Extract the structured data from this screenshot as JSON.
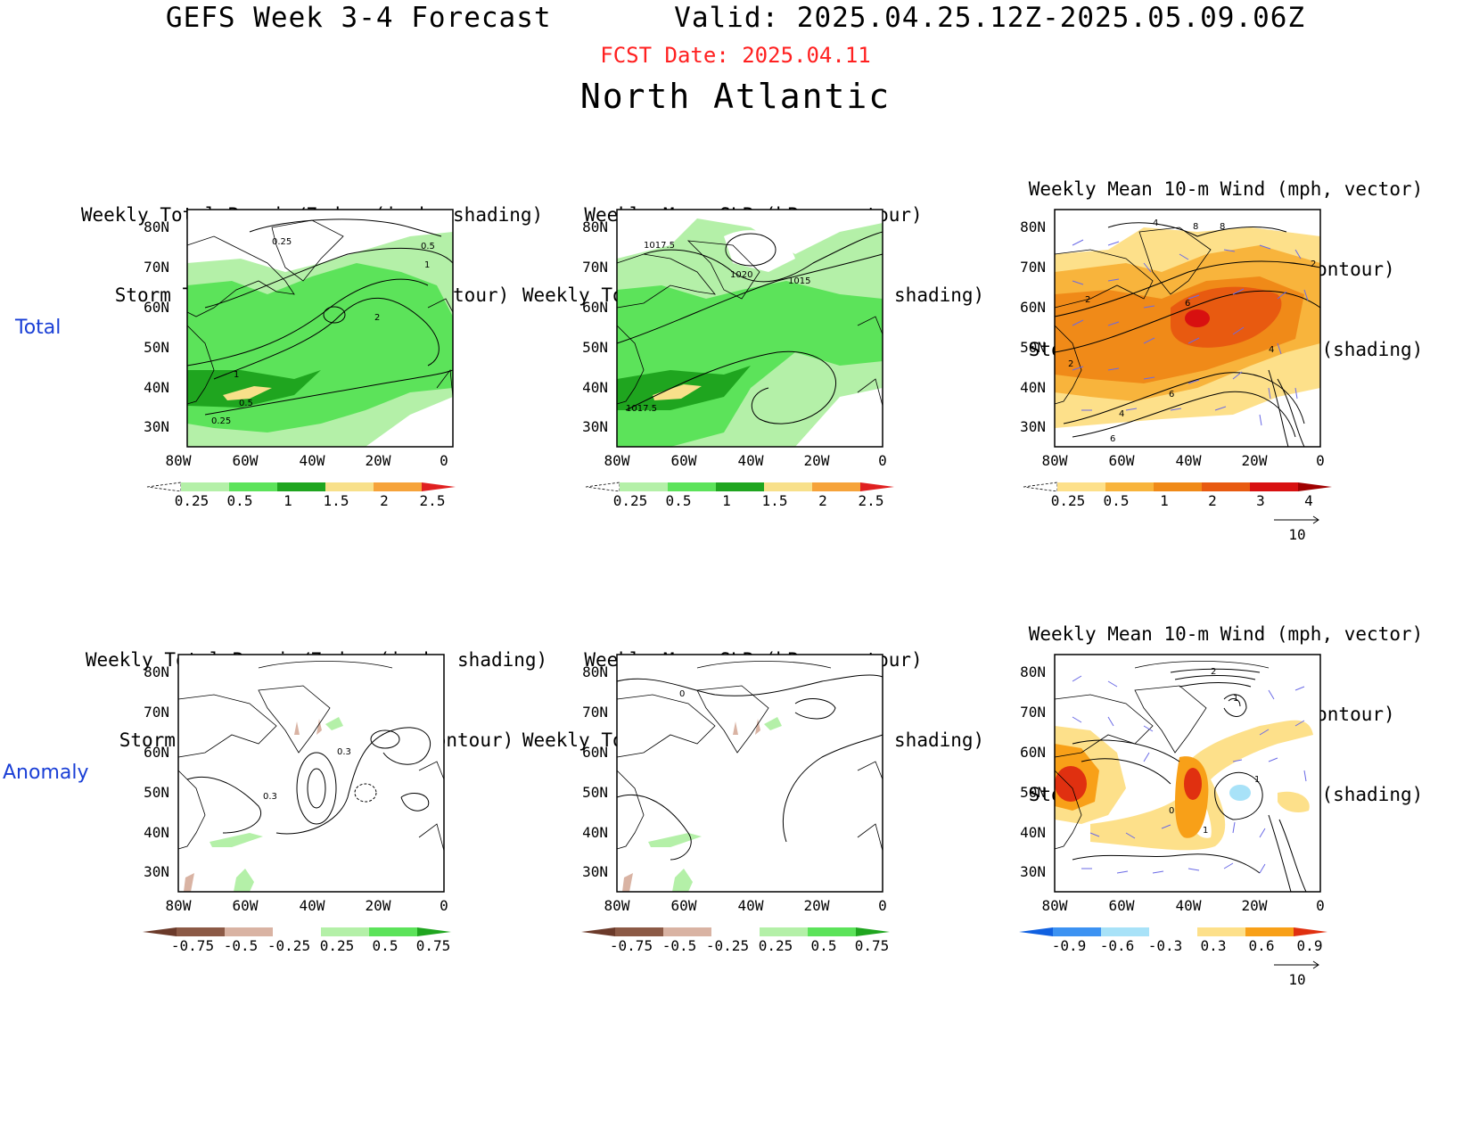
{
  "header": {
    "title": "GEFS Week 3-4 Forecast       Valid: 2025.04.25.12Z-2025.05.09.06Z",
    "fcst_date": "FCST Date: 2025.04.11",
    "region": "North Atlantic"
  },
  "rows": {
    "total_label": "Total",
    "anomaly_label": "Anomaly"
  },
  "axes": {
    "lat_labels": [
      "80N",
      "70N",
      "60N",
      "50N",
      "40N",
      "30N"
    ],
    "lon_labels": [
      "80W",
      "60W",
      "40W",
      "20W",
      "0"
    ]
  },
  "panels": [
    {
      "id": "total-precip",
      "title_lines": [
        "Weekly Total Precip/7-day (inch, shading)",
        "Storm Track Density/7-day (contour)"
      ],
      "colorbar": [
        "0.25",
        "0.5",
        "1",
        "1.5",
        "2",
        "2.5"
      ],
      "contour_labels": [
        "0.25",
        "0.5",
        "1",
        "2",
        "1",
        "0.5",
        "0.25"
      ]
    },
    {
      "id": "total-slp",
      "title_lines": [
        "Weekly Mean SLP (hPa, contour)",
        "Weekly Total Precip/7-day (inch, shading)"
      ],
      "colorbar": [
        "0.25",
        "0.5",
        "1",
        "1.5",
        "2",
        "2.5"
      ],
      "contour_labels": [
        "1017.5",
        "1020",
        "1015",
        "1017.5"
      ]
    },
    {
      "id": "total-wind",
      "title_lines": [
        "Weekly Mean 10-m Wind (mph, vector)",
        "10-m Wind Speed (mph, contour)",
        "Storm Track Density/7-day (shading)"
      ],
      "colorbar": [
        "0.25",
        "0.5",
        "1",
        "2",
        "3",
        "4"
      ],
      "contour_labels": [
        "4",
        "8",
        "8",
        "2",
        "6",
        "2",
        "4",
        "2",
        "6",
        "4",
        "6"
      ],
      "vector_ref": "10"
    },
    {
      "id": "anom-precip",
      "title_lines": [
        "Weekly Total Precip/7-day (inch, shading)",
        "Storm Track Density/7-day (contour)"
      ],
      "colorbar": [
        "-0.75",
        "-0.5",
        "-0.25",
        "0.25",
        "0.5",
        "0.75"
      ],
      "contour_labels": [
        "0.3",
        "0.3"
      ]
    },
    {
      "id": "anom-slp",
      "title_lines": [
        "Weekly Mean SLP (hPa, contour)",
        "Weekly Total Precip/7-day (inch, shading)"
      ],
      "colorbar": [
        "-0.75",
        "-0.5",
        "-0.25",
        "0.25",
        "0.5",
        "0.75"
      ],
      "contour_labels": [
        "0"
      ]
    },
    {
      "id": "anom-wind",
      "title_lines": [
        "Weekly Mean 10-m Wind (mph, vector)",
        "10-m Wind Speed (mph, contour)",
        "Storm Track Density/7-day (shading)"
      ],
      "colorbar": [
        "-0.9",
        "-0.6",
        "-0.3",
        "0.3",
        "0.6",
        "0.9"
      ],
      "contour_labels": [
        "2",
        "1",
        "1",
        "0",
        "1"
      ],
      "vector_ref": "10"
    }
  ],
  "colors": {
    "precip_scale": [
      "#ffffff",
      "#b4f0a8",
      "#5ce35a",
      "#1fa51f",
      "#f8e08a",
      "#f6a33a",
      "#e02020"
    ],
    "anom_precip_scale": [
      "#6b3a2a",
      "#8c5a46",
      "#d9b3a3",
      "#ffffff",
      "#b4f0a8",
      "#5ce35a",
      "#1fa51f"
    ],
    "track_scale": [
      "#ffffff",
      "#fde08a",
      "#f8b43c",
      "#f08a18",
      "#e85a10",
      "#d81010",
      "#a00000"
    ],
    "anom_track_scale": [
      "#1060e0",
      "#3c92f2",
      "#a8e2f8",
      "#ffffff",
      "#fde08a",
      "#f8a018",
      "#e03010"
    ],
    "vector": "#6a6ae6",
    "fcst_date": "#ff2020",
    "row_label": "#1a3fd6"
  }
}
